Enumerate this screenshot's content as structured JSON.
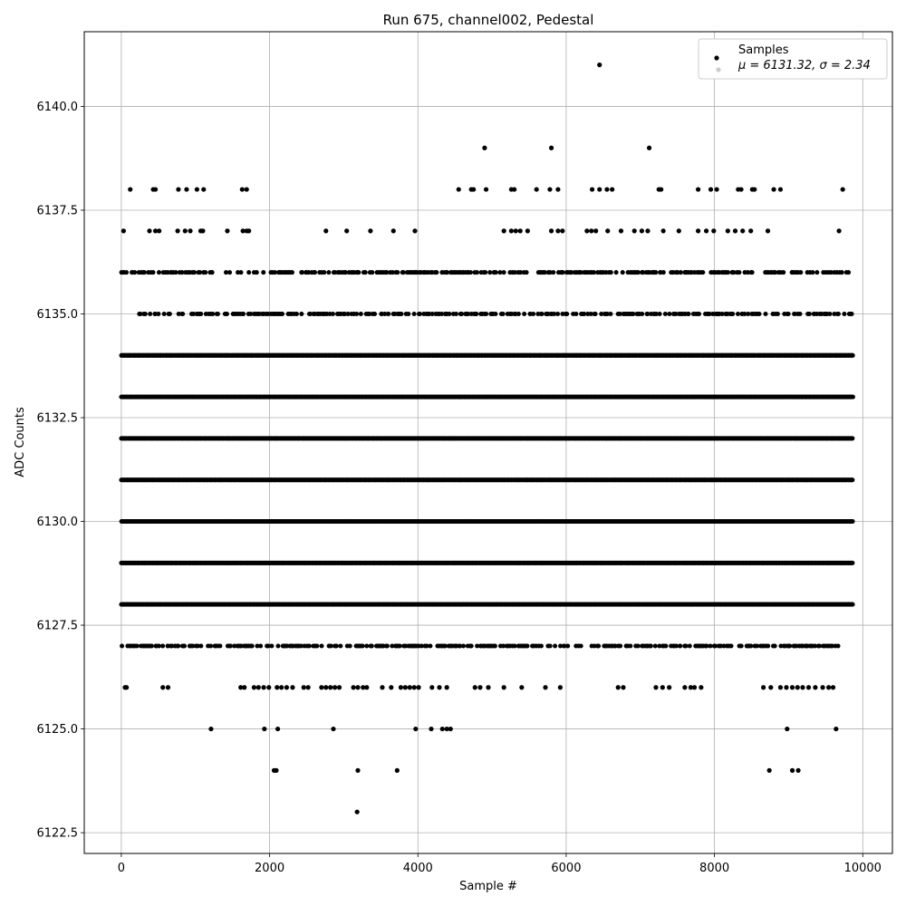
{
  "chart_data": {
    "type": "scatter",
    "title": "Run 675, channel002, Pedestal",
    "xlabel": "Sample #",
    "ylabel": "ADC Counts",
    "xlim": [
      -500,
      10400
    ],
    "ylim": [
      6122.0,
      6141.8
    ],
    "xticks": [
      0,
      2000,
      4000,
      6000,
      8000,
      10000
    ],
    "yticks": [
      6122.5,
      6125.0,
      6127.5,
      6130.0,
      6132.5,
      6135.0,
      6137.5,
      6140.0
    ],
    "xtick_labels": [
      "0",
      "2000",
      "4000",
      "6000",
      "8000",
      "10000"
    ],
    "ytick_labels": [
      "6122.5",
      "6125.0",
      "6127.5",
      "6130.0",
      "6132.5",
      "6135.0",
      "6137.5",
      "6140.0"
    ],
    "grid": true,
    "legend_position": "top-right",
    "legend": {
      "series_name": "Samples",
      "stats_line": "μ = 6131.32, σ = 2.34"
    },
    "series": [
      {
        "name": "Samples",
        "color": "#000000",
        "bands": [
          {
            "y": 6130,
            "ranges": [
              [
                0,
                9870
              ]
            ]
          },
          {
            "y": 6131,
            "ranges": [
              [
                0,
                9870
              ]
            ]
          },
          {
            "y": 6132,
            "ranges": [
              [
                0,
                9870
              ]
            ]
          },
          {
            "y": 6133,
            "ranges": [
              [
                0,
                9870
              ]
            ]
          },
          {
            "y": 6134,
            "ranges": [
              [
                0,
                9870
              ]
            ]
          },
          {
            "y": 6129,
            "ranges": [
              [
                0,
                9870
              ]
            ]
          },
          {
            "y": 6128,
            "ranges": [
              [
                0,
                9870
              ]
            ]
          },
          {
            "y": 6127,
            "ranges": [
              [
                0,
                9700
              ]
            ]
          },
          {
            "y": 6135,
            "ranges": [
              [
                200,
                9870
              ]
            ]
          },
          {
            "y": 6136,
            "ranges": [
              [
                0,
                9870
              ]
            ]
          }
        ],
        "points": [
          {
            "x": 6450,
            "y": 6141
          },
          {
            "x": 4900,
            "y": 6139
          },
          {
            "x": 5800,
            "y": 6139
          },
          {
            "x": 7120,
            "y": 6139
          },
          {
            "x": 120,
            "y": 6138
          },
          {
            "x": 430,
            "y": 6138
          },
          {
            "x": 460,
            "y": 6138
          },
          {
            "x": 770,
            "y": 6138
          },
          {
            "x": 880,
            "y": 6138
          },
          {
            "x": 1020,
            "y": 6138
          },
          {
            "x": 1110,
            "y": 6138
          },
          {
            "x": 1630,
            "y": 6138
          },
          {
            "x": 1690,
            "y": 6138
          },
          {
            "x": 4550,
            "y": 6138
          },
          {
            "x": 4720,
            "y": 6138
          },
          {
            "x": 4750,
            "y": 6138
          },
          {
            "x": 4920,
            "y": 6138
          },
          {
            "x": 5260,
            "y": 6138
          },
          {
            "x": 5300,
            "y": 6138
          },
          {
            "x": 5600,
            "y": 6138
          },
          {
            "x": 5780,
            "y": 6138
          },
          {
            "x": 5890,
            "y": 6138
          },
          {
            "x": 6350,
            "y": 6138
          },
          {
            "x": 6450,
            "y": 6138
          },
          {
            "x": 6550,
            "y": 6138
          },
          {
            "x": 6620,
            "y": 6138
          },
          {
            "x": 7250,
            "y": 6138
          },
          {
            "x": 7280,
            "y": 6138
          },
          {
            "x": 7780,
            "y": 6138
          },
          {
            "x": 7950,
            "y": 6138
          },
          {
            "x": 8030,
            "y": 6138
          },
          {
            "x": 8320,
            "y": 6138
          },
          {
            "x": 8360,
            "y": 6138
          },
          {
            "x": 8510,
            "y": 6138
          },
          {
            "x": 8540,
            "y": 6138
          },
          {
            "x": 8800,
            "y": 6138
          },
          {
            "x": 8890,
            "y": 6138
          },
          {
            "x": 9730,
            "y": 6138
          },
          {
            "x": 30,
            "y": 6137
          },
          {
            "x": 380,
            "y": 6137
          },
          {
            "x": 460,
            "y": 6137
          },
          {
            "x": 510,
            "y": 6137
          },
          {
            "x": 760,
            "y": 6137
          },
          {
            "x": 860,
            "y": 6137
          },
          {
            "x": 930,
            "y": 6137
          },
          {
            "x": 1070,
            "y": 6137
          },
          {
            "x": 1100,
            "y": 6137
          },
          {
            "x": 1430,
            "y": 6137
          },
          {
            "x": 1640,
            "y": 6137
          },
          {
            "x": 1690,
            "y": 6137
          },
          {
            "x": 1720,
            "y": 6137
          },
          {
            "x": 2760,
            "y": 6137
          },
          {
            "x": 3040,
            "y": 6137
          },
          {
            "x": 3360,
            "y": 6137
          },
          {
            "x": 3670,
            "y": 6137
          },
          {
            "x": 3960,
            "y": 6137
          },
          {
            "x": 5160,
            "y": 6137
          },
          {
            "x": 5260,
            "y": 6137
          },
          {
            "x": 5320,
            "y": 6137
          },
          {
            "x": 5380,
            "y": 6137
          },
          {
            "x": 5480,
            "y": 6137
          },
          {
            "x": 5800,
            "y": 6137
          },
          {
            "x": 5890,
            "y": 6137
          },
          {
            "x": 5950,
            "y": 6137
          },
          {
            "x": 6280,
            "y": 6137
          },
          {
            "x": 6340,
            "y": 6137
          },
          {
            "x": 6400,
            "y": 6137
          },
          {
            "x": 6560,
            "y": 6137
          },
          {
            "x": 6740,
            "y": 6137
          },
          {
            "x": 6920,
            "y": 6137
          },
          {
            "x": 7020,
            "y": 6137
          },
          {
            "x": 7100,
            "y": 6137
          },
          {
            "x": 7310,
            "y": 6137
          },
          {
            "x": 7520,
            "y": 6137
          },
          {
            "x": 7780,
            "y": 6137
          },
          {
            "x": 7890,
            "y": 6137
          },
          {
            "x": 7990,
            "y": 6137
          },
          {
            "x": 8180,
            "y": 6137
          },
          {
            "x": 8280,
            "y": 6137
          },
          {
            "x": 8380,
            "y": 6137
          },
          {
            "x": 8490,
            "y": 6137
          },
          {
            "x": 8720,
            "y": 6137
          },
          {
            "x": 9680,
            "y": 6137
          },
          {
            "x": 50,
            "y": 6126
          },
          {
            "x": 70,
            "y": 6126
          },
          {
            "x": 560,
            "y": 6126
          },
          {
            "x": 630,
            "y": 6126
          },
          {
            "x": 1610,
            "y": 6126
          },
          {
            "x": 1660,
            "y": 6126
          },
          {
            "x": 1790,
            "y": 6126
          },
          {
            "x": 1850,
            "y": 6126
          },
          {
            "x": 1920,
            "y": 6126
          },
          {
            "x": 1990,
            "y": 6126
          },
          {
            "x": 2100,
            "y": 6126
          },
          {
            "x": 2160,
            "y": 6126
          },
          {
            "x": 2230,
            "y": 6126
          },
          {
            "x": 2310,
            "y": 6126
          },
          {
            "x": 2460,
            "y": 6126
          },
          {
            "x": 2520,
            "y": 6126
          },
          {
            "x": 2700,
            "y": 6126
          },
          {
            "x": 2760,
            "y": 6126
          },
          {
            "x": 2820,
            "y": 6126
          },
          {
            "x": 2880,
            "y": 6126
          },
          {
            "x": 2940,
            "y": 6126
          },
          {
            "x": 3130,
            "y": 6126
          },
          {
            "x": 3190,
            "y": 6126
          },
          {
            "x": 3260,
            "y": 6126
          },
          {
            "x": 3310,
            "y": 6126
          },
          {
            "x": 3520,
            "y": 6126
          },
          {
            "x": 3640,
            "y": 6126
          },
          {
            "x": 3770,
            "y": 6126
          },
          {
            "x": 3830,
            "y": 6126
          },
          {
            "x": 3890,
            "y": 6126
          },
          {
            "x": 3950,
            "y": 6126
          },
          {
            "x": 4010,
            "y": 6126
          },
          {
            "x": 4190,
            "y": 6126
          },
          {
            "x": 4290,
            "y": 6126
          },
          {
            "x": 4390,
            "y": 6126
          },
          {
            "x": 4770,
            "y": 6126
          },
          {
            "x": 4840,
            "y": 6126
          },
          {
            "x": 4950,
            "y": 6126
          },
          {
            "x": 5160,
            "y": 6126
          },
          {
            "x": 5400,
            "y": 6126
          },
          {
            "x": 5720,
            "y": 6126
          },
          {
            "x": 5920,
            "y": 6126
          },
          {
            "x": 6700,
            "y": 6126
          },
          {
            "x": 6770,
            "y": 6126
          },
          {
            "x": 7210,
            "y": 6126
          },
          {
            "x": 7300,
            "y": 6126
          },
          {
            "x": 7390,
            "y": 6126
          },
          {
            "x": 7600,
            "y": 6126
          },
          {
            "x": 7680,
            "y": 6126
          },
          {
            "x": 7730,
            "y": 6126
          },
          {
            "x": 7820,
            "y": 6126
          },
          {
            "x": 8660,
            "y": 6126
          },
          {
            "x": 8760,
            "y": 6126
          },
          {
            "x": 8890,
            "y": 6126
          },
          {
            "x": 8970,
            "y": 6126
          },
          {
            "x": 9050,
            "y": 6126
          },
          {
            "x": 9120,
            "y": 6126
          },
          {
            "x": 9190,
            "y": 6126
          },
          {
            "x": 9270,
            "y": 6126
          },
          {
            "x": 9360,
            "y": 6126
          },
          {
            "x": 9460,
            "y": 6126
          },
          {
            "x": 9540,
            "y": 6126
          },
          {
            "x": 9600,
            "y": 6126
          },
          {
            "x": 1210,
            "y": 6125
          },
          {
            "x": 1930,
            "y": 6125
          },
          {
            "x": 2110,
            "y": 6125
          },
          {
            "x": 2860,
            "y": 6125
          },
          {
            "x": 3970,
            "y": 6125
          },
          {
            "x": 4180,
            "y": 6125
          },
          {
            "x": 4330,
            "y": 6125
          },
          {
            "x": 4390,
            "y": 6125
          },
          {
            "x": 4440,
            "y": 6125
          },
          {
            "x": 8980,
            "y": 6125
          },
          {
            "x": 9640,
            "y": 6125
          },
          {
            "x": 2060,
            "y": 6124
          },
          {
            "x": 2090,
            "y": 6124
          },
          {
            "x": 3190,
            "y": 6124
          },
          {
            "x": 3720,
            "y": 6124
          },
          {
            "x": 8740,
            "y": 6124
          },
          {
            "x": 9050,
            "y": 6124
          },
          {
            "x": 9130,
            "y": 6124
          },
          {
            "x": 3180,
            "y": 6123
          }
        ]
      }
    ]
  }
}
